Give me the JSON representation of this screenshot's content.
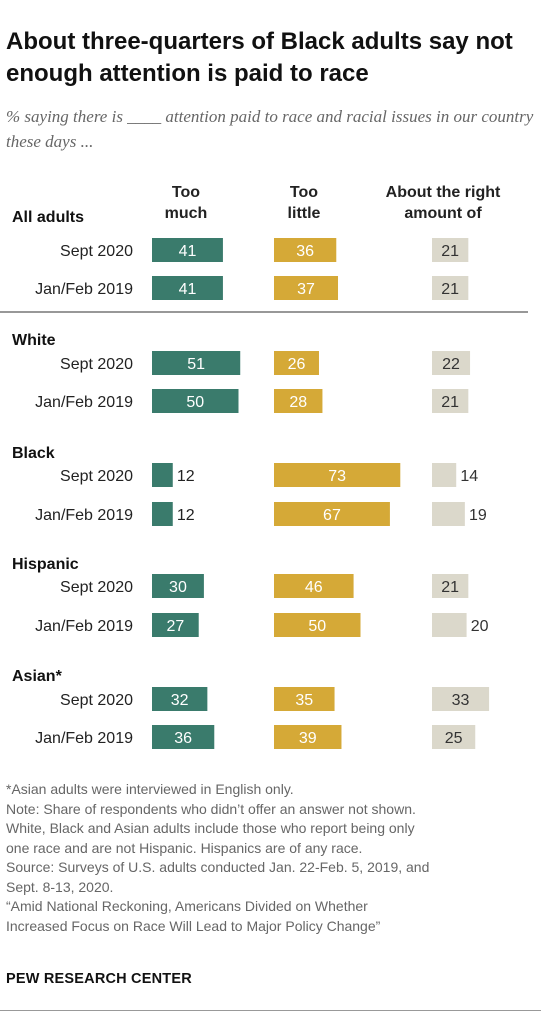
{
  "title": "About three-quarters of Black adults say not enough attention is paid to race",
  "subtitle": "% saying there is ____ attention paid to race and racial issues in our country these days ...",
  "footnotes": [
    "*Asian adults were interviewed in English only.",
    "Note: Share of respondents who didn’t offer an answer not shown.",
    "White, Black and Asian adults include those who report being only",
    "one race and are not Hispanic. Hispanics are of any race.",
    "Source: Surveys of U.S. adults conducted Jan. 22-Feb. 5, 2019, and",
    "Sept. 8-13, 2020.",
    "“Amid National Reckoning, Americans Divided on Whether",
    "Increased Focus on Race Will Lead to Major Policy Change”"
  ],
  "brand": "PEW RESEARCH CENTER",
  "colors": {
    "too_much": "#3a7b6c",
    "too_little": "#d5a937",
    "about_right": "#dbd8cb"
  },
  "chart_data": {
    "type": "bar",
    "series": [
      {
        "name": "Too much"
      },
      {
        "name": "Too little"
      },
      {
        "name": "About the right amount of"
      }
    ],
    "column_headers": [
      [
        "Too",
        "much"
      ],
      [
        "Too",
        "little"
      ],
      [
        "About the right",
        "amount of"
      ]
    ],
    "groups": [
      {
        "label": "All adults",
        "rows": [
          {
            "label": "Sept 2020",
            "values": [
              41,
              36,
              21
            ]
          },
          {
            "label": "Jan/Feb 2019",
            "values": [
              41,
              37,
              21
            ]
          }
        ]
      },
      {
        "label": "White",
        "rows": [
          {
            "label": "Sept 2020",
            "values": [
              51,
              26,
              22
            ]
          },
          {
            "label": "Jan/Feb 2019",
            "values": [
              50,
              28,
              21
            ]
          }
        ]
      },
      {
        "label": "Black",
        "rows": [
          {
            "label": "Sept 2020",
            "values": [
              12,
              73,
              14
            ]
          },
          {
            "label": "Jan/Feb 2019",
            "values": [
              12,
              67,
              19
            ]
          }
        ]
      },
      {
        "label": "Hispanic",
        "rows": [
          {
            "label": "Sept 2020",
            "values": [
              30,
              46,
              21
            ]
          },
          {
            "label": "Jan/Feb 2019",
            "values": [
              27,
              50,
              20
            ]
          }
        ]
      },
      {
        "label": "Asian*",
        "rows": [
          {
            "label": "Sept 2020",
            "values": [
              32,
              35,
              33
            ]
          },
          {
            "label": "Jan/Feb 2019",
            "values": [
              36,
              39,
              25
            ]
          }
        ]
      }
    ]
  }
}
